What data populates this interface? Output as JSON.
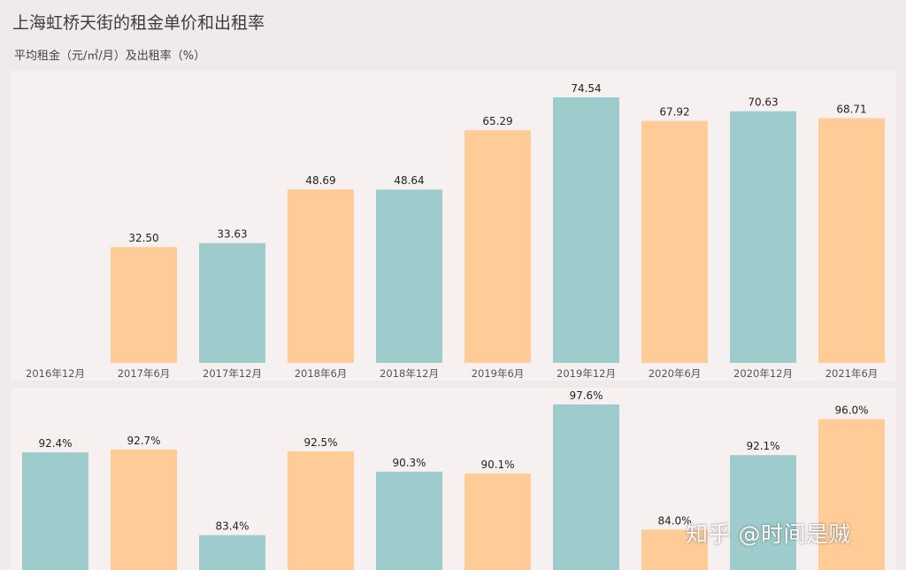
{
  "title": "上海虹桥天街的租金单价和出租率",
  "subtitle": "平均租金（元/㎡/月）及出租率（%）",
  "watermark": "知乎 @时间是贼",
  "colors": {
    "orange": "#ffcb96",
    "teal": "#9ecccc",
    "label_text": "#222222",
    "tick_text": "#555555"
  },
  "chart_data": [
    {
      "type": "bar",
      "title": "",
      "xlabel": "",
      "ylabel": "",
      "categories": [
        "2016年12月",
        "2017年6月",
        "2017年12月",
        "2018年6月",
        "2018年12月",
        "2019年6月",
        "2019年12月",
        "2020年6月",
        "2020年12月",
        "2021年6月"
      ],
      "values": [
        null,
        32.5,
        33.63,
        48.69,
        48.64,
        65.29,
        74.54,
        67.92,
        70.63,
        68.71
      ],
      "labels": [
        "",
        "32.50",
        "33.63",
        "48.69",
        "48.64",
        "65.29",
        "74.54",
        "67.92",
        "70.63",
        "68.71"
      ],
      "ylim": [
        0,
        80
      ],
      "grid": false,
      "legend": "none"
    },
    {
      "type": "bar",
      "title": "",
      "xlabel": "",
      "ylabel": "",
      "categories": [
        "2016年12月",
        "2017年6月",
        "2017年12月",
        "2018年6月",
        "2018年12月",
        "2019年6月",
        "2019年12月",
        "2020年6月",
        "2020年12月",
        "2021年6月"
      ],
      "values": [
        92.4,
        92.7,
        83.4,
        92.5,
        90.3,
        90.1,
        97.6,
        84.0,
        92.1,
        96.0
      ],
      "labels": [
        "92.4%",
        "92.7%",
        "83.4%",
        "92.5%",
        "90.3%",
        "90.1%",
        "97.6%",
        "84.0%",
        "92.1%",
        "96.0%"
      ],
      "ylim": [
        80,
        100
      ],
      "grid": false,
      "legend": "none"
    }
  ]
}
